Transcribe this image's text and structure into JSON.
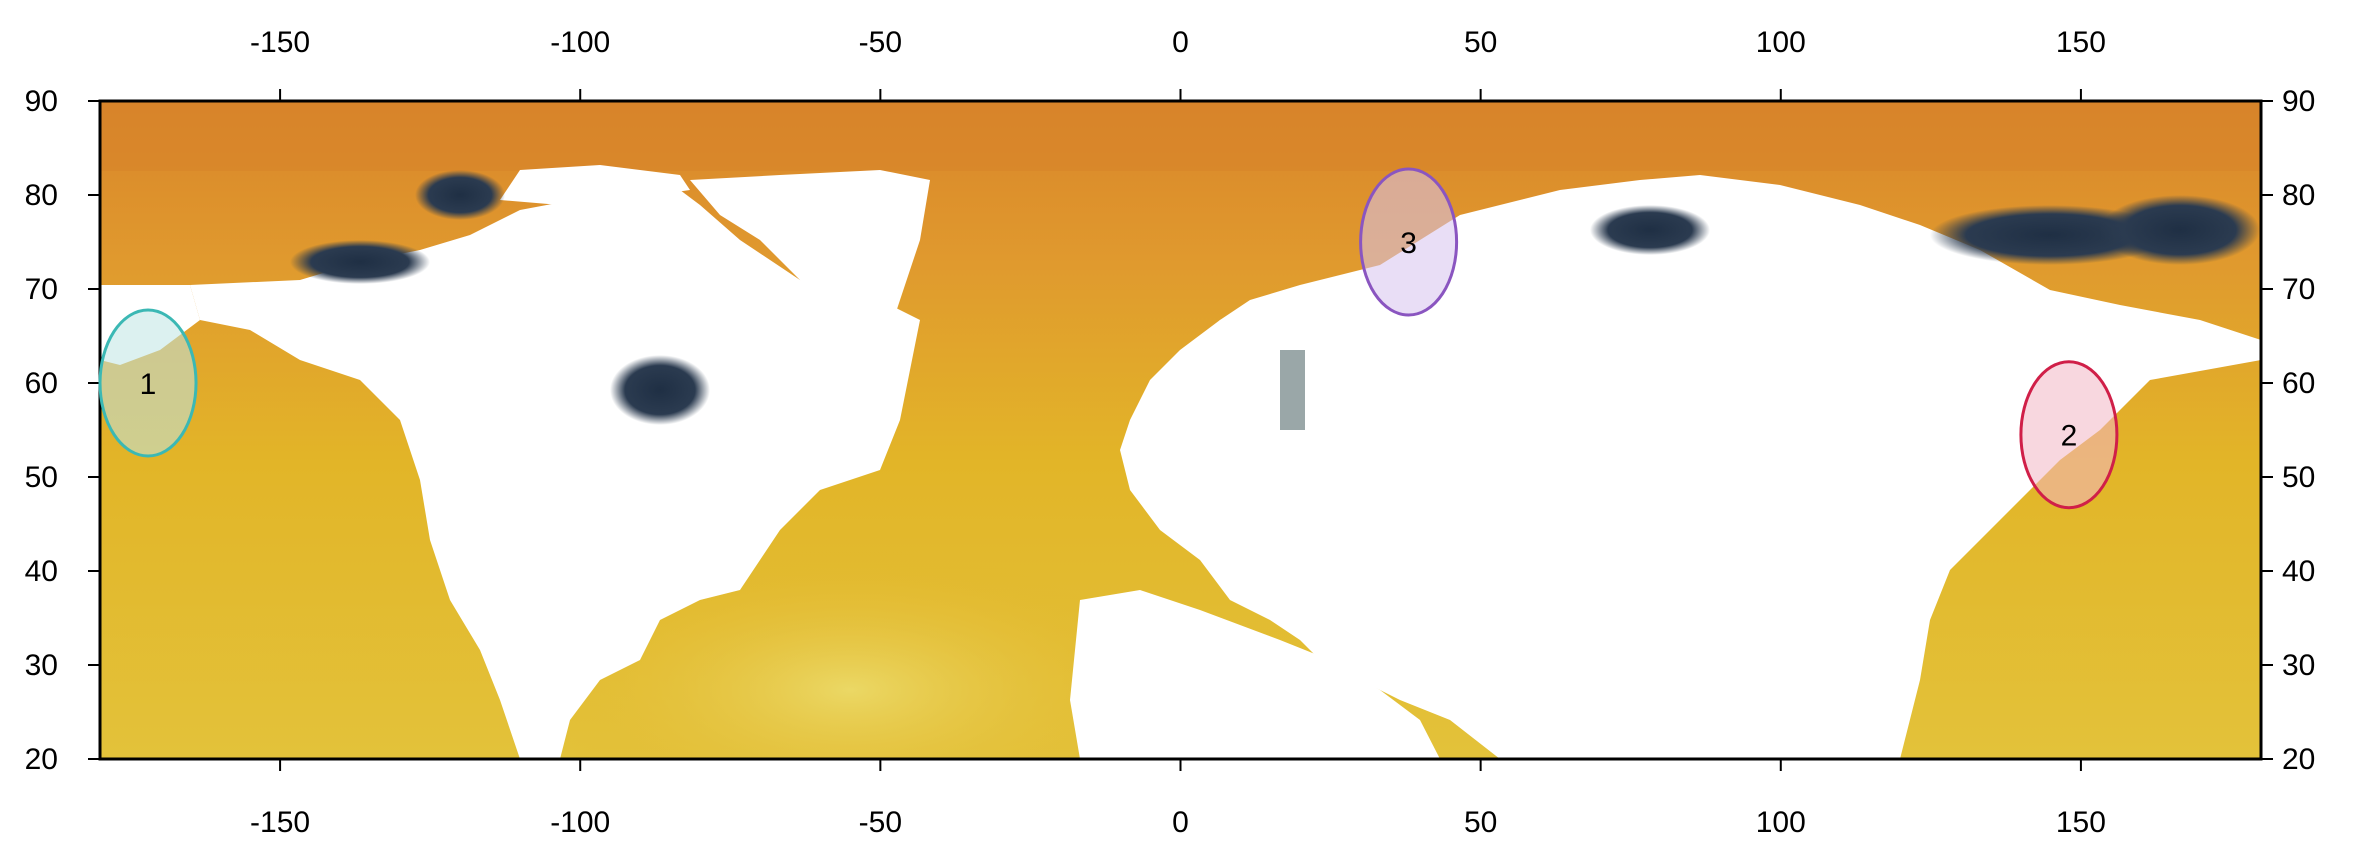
{
  "map": {
    "lon_range": [
      -180,
      180
    ],
    "lat_range": [
      20,
      90
    ],
    "x_ticks": [
      "-150",
      "-100",
      "-50",
      "0",
      "50",
      "100",
      "150"
    ],
    "y_ticks": [
      "20",
      "30",
      "40",
      "50",
      "60",
      "70",
      "80",
      "90"
    ],
    "land_color": "#ffffff",
    "ocean_colors": {
      "warm_yellow": "#e8d35a",
      "mid_yellow": "#e2b528",
      "orange": "#e09a2e",
      "dark_orange": "#d9852a",
      "ice_navy": "#24344a",
      "ice_grey": "#9aa7a8"
    },
    "regions": [
      {
        "label": "1",
        "lon": -172,
        "lat": 60,
        "outline": "#3bb8b4",
        "fill": "#bfe6e3"
      },
      {
        "label": "2",
        "lon": 148,
        "lat": 54.5,
        "outline": "#d01f48",
        "fill": "#f3b6c4"
      },
      {
        "label": "3",
        "lon": 38,
        "lat": 75,
        "outline": "#8a55c0",
        "fill": "#d7c2ee"
      }
    ]
  }
}
